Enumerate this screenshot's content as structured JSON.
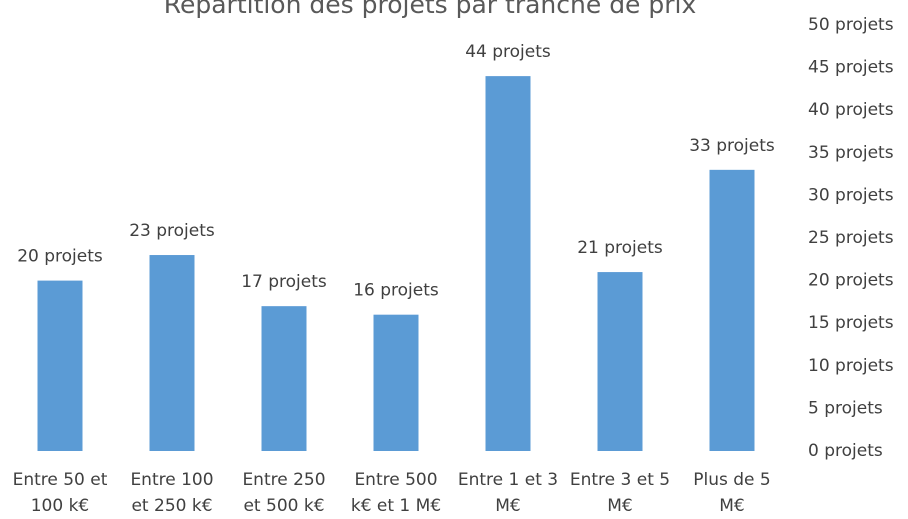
{
  "chart_data": {
    "type": "bar",
    "title": "Répartition des projets par tranche de prix",
    "categories": [
      "Entre 50 et 100 k€",
      "Entre 100 et 250 k€",
      "Entre 250 et 500 k€",
      "Entre 500 k€ et 1 M€",
      "Entre 1 et 3 M€",
      "Entre 3 et 5 M€",
      "Plus de 5 M€"
    ],
    "values": [
      20,
      23,
      17,
      16,
      44,
      21,
      33
    ],
    "value_labels": [
      "20 projets",
      "23 projets",
      "17 projets",
      "16 projets",
      "44 projets",
      "21 projets",
      "33 projets"
    ],
    "color": "#5b9bd5",
    "ylim": [
      0,
      50
    ],
    "yticks": [
      {
        "value": 0,
        "label": "0 projets"
      },
      {
        "value": 5,
        "label": "5 projets"
      },
      {
        "value": 10,
        "label": "10 projets"
      },
      {
        "value": 15,
        "label": "15 projets"
      },
      {
        "value": 20,
        "label": "20 projets"
      },
      {
        "value": 25,
        "label": "25 projets"
      },
      {
        "value": 30,
        "label": "30 projets"
      },
      {
        "value": 35,
        "label": "35 projets"
      },
      {
        "value": 40,
        "label": "40 projets"
      },
      {
        "value": 45,
        "label": "45 projets"
      },
      {
        "value": 50,
        "label": "50 projets"
      }
    ],
    "grid": false,
    "axis_side": "right"
  }
}
